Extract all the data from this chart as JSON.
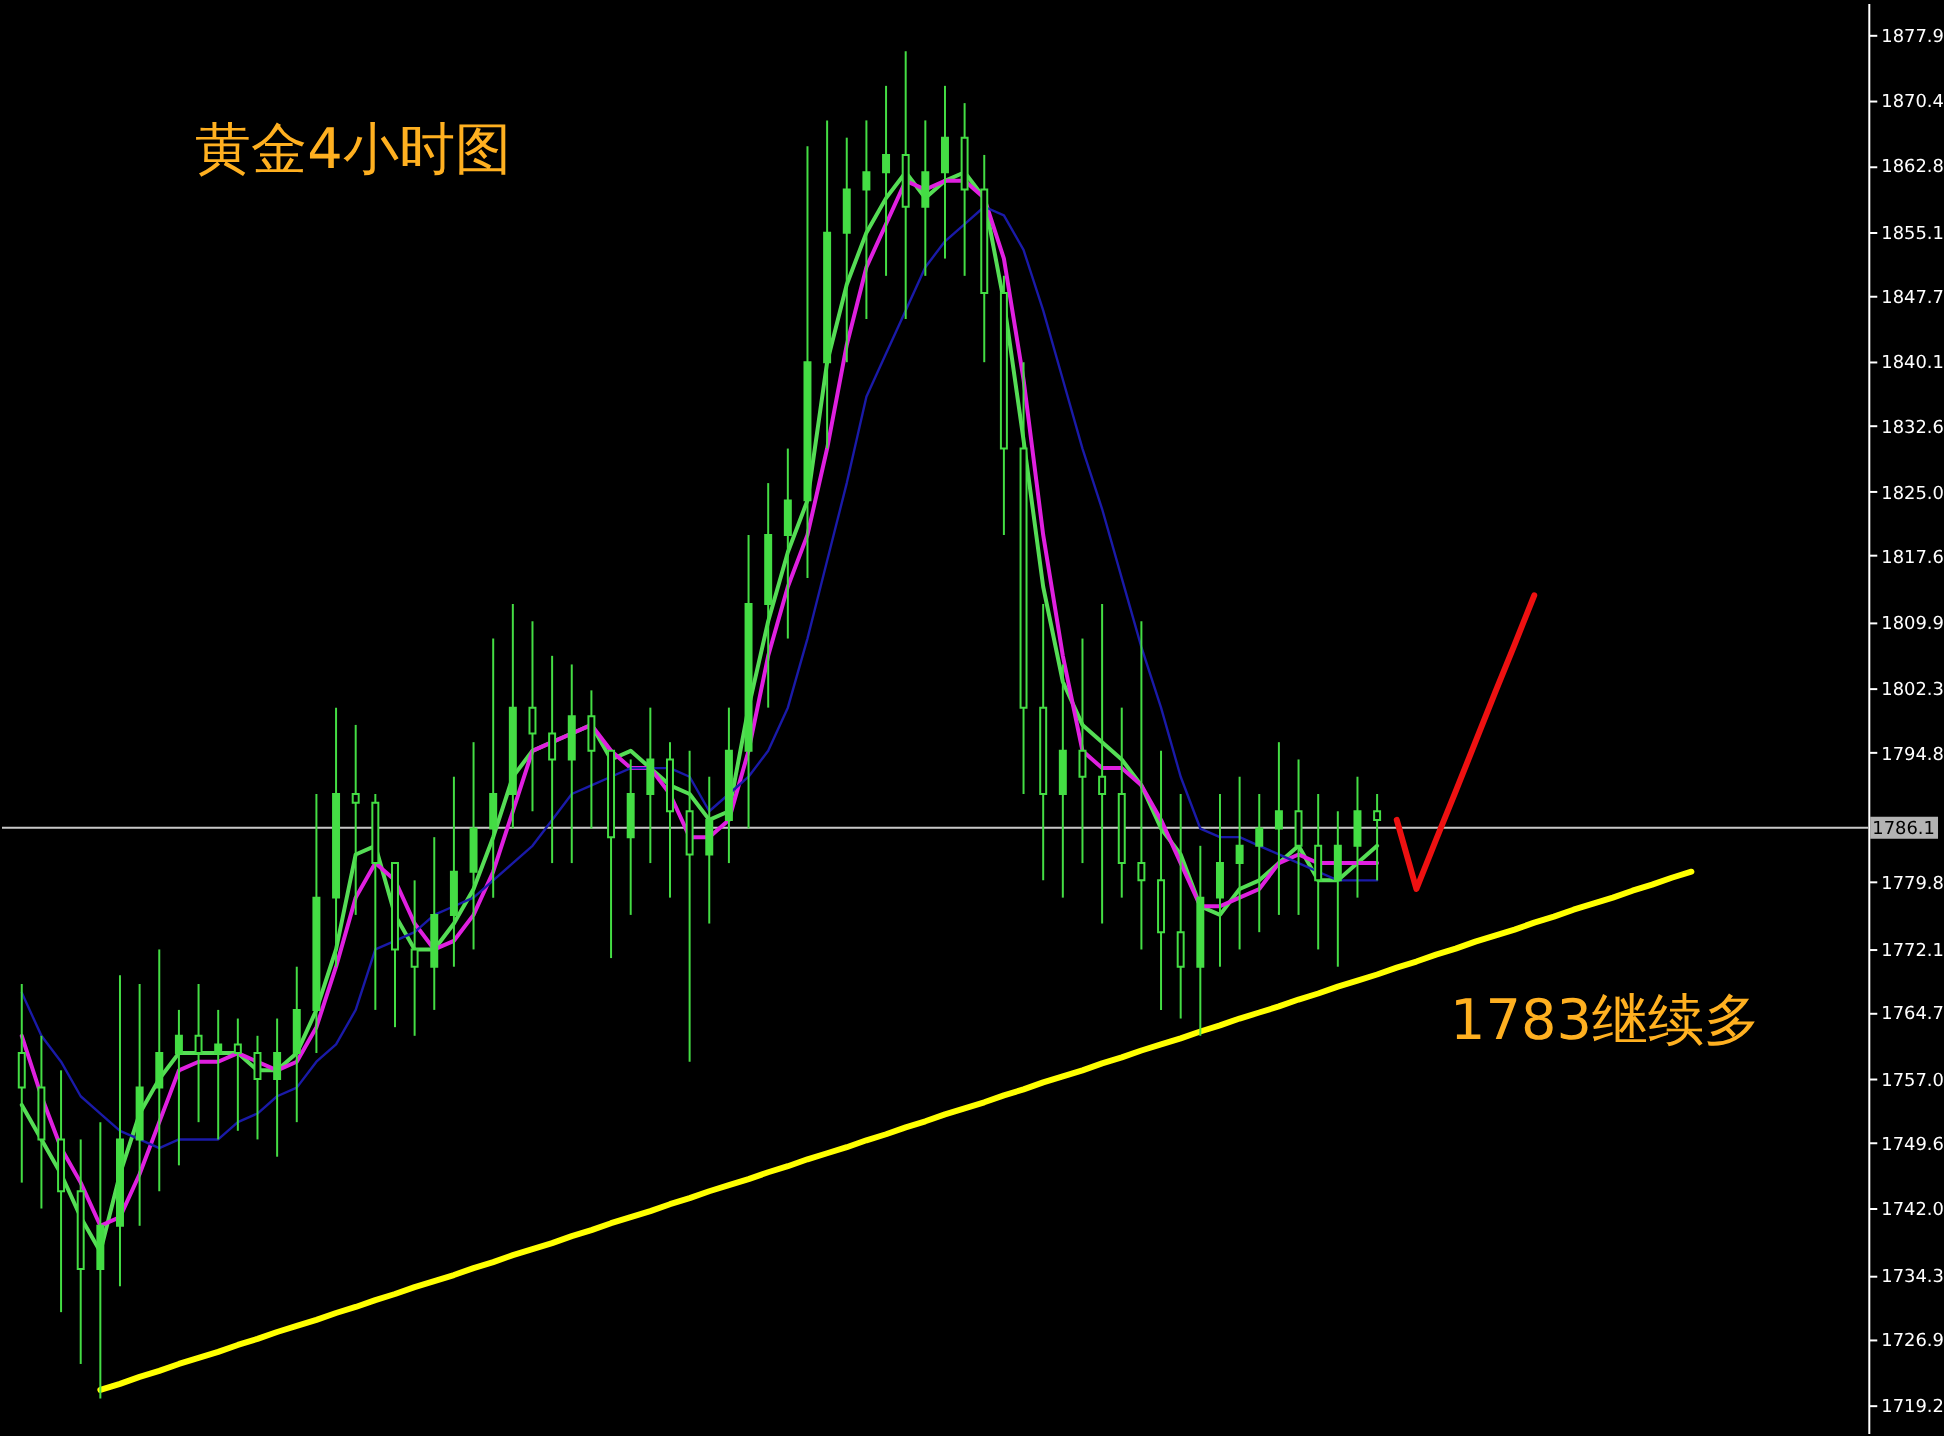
{
  "chart_data": {
    "type": "candlestick",
    "title": "黄金4小时图",
    "color": "#44dd44",
    "categories": [
      null,
      null,
      null,
      null,
      null,
      null,
      null,
      null,
      null,
      null,
      null,
      null,
      null,
      null,
      null,
      null,
      null,
      null,
      null,
      null,
      null,
      null,
      null,
      null,
      null,
      null,
      null,
      null,
      null,
      null,
      null,
      null,
      null,
      null,
      null,
      null,
      null,
      null,
      null,
      null,
      null,
      null,
      null,
      null,
      null,
      null,
      null,
      null,
      null,
      null,
      null,
      null,
      null,
      null,
      null,
      null,
      null,
      null,
      null,
      null,
      null,
      null,
      null,
      null,
      null,
      null,
      null,
      null,
      null,
      null,
      null,
      null,
      null,
      null,
      null,
      null,
      null,
      null,
      null,
      null,
      null,
      null,
      null,
      null,
      null,
      null,
      null,
      null,
      null,
      null,
      null,
      null,
      null,
      null
    ],
    "ohlc": [
      [
        1760,
        1768,
        1745,
        1756
      ],
      [
        1756,
        1762,
        1742,
        1750
      ],
      [
        1750,
        1758,
        1730,
        1744
      ],
      [
        1744,
        1750,
        1724,
        1735
      ],
      [
        1735,
        1752,
        1720,
        1740
      ],
      [
        1740,
        1769,
        1733,
        1750
      ],
      [
        1750,
        1768,
        1740,
        1756
      ],
      [
        1756,
        1772,
        1744,
        1760
      ],
      [
        1760,
        1765,
        1747,
        1762
      ],
      [
        1762,
        1768,
        1752,
        1760
      ],
      [
        1760,
        1765,
        1750,
        1761
      ],
      [
        1761,
        1764,
        1751,
        1760
      ],
      [
        1760,
        1762,
        1750,
        1757
      ],
      [
        1757,
        1764,
        1748,
        1760
      ],
      [
        1760,
        1770,
        1752,
        1765
      ],
      [
        1765,
        1790,
        1760,
        1778
      ],
      [
        1778,
        1800,
        1770,
        1790
      ],
      [
        1790,
        1798,
        1776,
        1789
      ],
      [
        1789,
        1790,
        1765,
        1782
      ],
      [
        1782,
        1782,
        1763,
        1772
      ],
      [
        1772,
        1780,
        1762,
        1770
      ],
      [
        1770,
        1785,
        1765,
        1776
      ],
      [
        1776,
        1792,
        1770,
        1781
      ],
      [
        1781,
        1796,
        1772,
        1786
      ],
      [
        1786,
        1808,
        1778,
        1790
      ],
      [
        1790,
        1812,
        1786,
        1800
      ],
      [
        1800,
        1810,
        1788,
        1797
      ],
      [
        1797,
        1806,
        1782,
        1794
      ],
      [
        1794,
        1805,
        1782,
        1799
      ],
      [
        1799,
        1802,
        1786,
        1795
      ],
      [
        1795,
        1795,
        1771,
        1785
      ],
      [
        1785,
        1794,
        1776,
        1790
      ],
      [
        1790,
        1800,
        1782,
        1794
      ],
      [
        1794,
        1796,
        1778,
        1788
      ],
      [
        1788,
        1795,
        1759,
        1783
      ],
      [
        1783,
        1792,
        1775,
        1787
      ],
      [
        1787,
        1800,
        1782,
        1795
      ],
      [
        1795,
        1820,
        1786,
        1812
      ],
      [
        1812,
        1826,
        1800,
        1820
      ],
      [
        1820,
        1830,
        1808,
        1824
      ],
      [
        1824,
        1865,
        1815,
        1840
      ],
      [
        1840,
        1868,
        1830,
        1855
      ],
      [
        1855,
        1866,
        1840,
        1860
      ],
      [
        1860,
        1868,
        1845,
        1862
      ],
      [
        1862,
        1872,
        1850,
        1864
      ],
      [
        1864,
        1876,
        1845,
        1858
      ],
      [
        1858,
        1868,
        1850,
        1862
      ],
      [
        1862,
        1872,
        1852,
        1866
      ],
      [
        1866,
        1870,
        1850,
        1860
      ],
      [
        1860,
        1864,
        1840,
        1848
      ],
      [
        1848,
        1850,
        1820,
        1830
      ],
      [
        1830,
        1840,
        1790,
        1800
      ],
      [
        1800,
        1812,
        1780,
        1790
      ],
      [
        1790,
        1805,
        1778,
        1795
      ],
      [
        1795,
        1808,
        1782,
        1792
      ],
      [
        1792,
        1812,
        1775,
        1790
      ],
      [
        1790,
        1800,
        1778,
        1782
      ],
      [
        1782,
        1810,
        1772,
        1780
      ],
      [
        1780,
        1795,
        1765,
        1774
      ],
      [
        1774,
        1790,
        1764,
        1770
      ],
      [
        1770,
        1784,
        1762,
        1778
      ],
      [
        1778,
        1790,
        1770,
        1782
      ],
      [
        1782,
        1792,
        1772,
        1784
      ],
      [
        1784,
        1790,
        1774,
        1786
      ],
      [
        1786,
        1796,
        1776,
        1788
      ],
      [
        1788,
        1794,
        1776,
        1784
      ],
      [
        1784,
        1790,
        1772,
        1780
      ],
      [
        1780,
        1788,
        1770,
        1784
      ],
      [
        1784,
        1792,
        1778,
        1788
      ],
      [
        1788,
        1790,
        1780,
        1787
      ],
      null,
      null,
      null,
      null,
      null,
      null,
      null,
      null,
      null,
      null,
      null,
      null,
      null,
      null,
      null,
      null,
      null,
      null,
      null,
      null,
      null,
      null,
      null,
      null
    ],
    "series": [
      {
        "type": "line",
        "color": "#55dd55",
        "values": [
          1754,
          1750,
          1746,
          1741,
          1737,
          1746,
          1753,
          1757,
          1760,
          1760,
          1760,
          1760,
          1758,
          1758,
          1760,
          1765,
          1772,
          1783,
          1784,
          1776,
          1772,
          1772,
          1775,
          1779,
          1785,
          1792,
          1795,
          1796,
          1797,
          1798,
          1794,
          1795,
          1793,
          1791,
          1790,
          1787,
          1788,
          1800,
          1810,
          1818,
          1824,
          1840,
          1849,
          1855,
          1859,
          1862,
          1859,
          1861,
          1862,
          1859,
          1847,
          1831,
          1814,
          1803,
          1798,
          1796,
          1794,
          1791,
          1786,
          1783,
          1777,
          1776,
          1779,
          1780,
          1782,
          1784,
          1780,
          1780,
          1782,
          1784,
          null,
          null,
          null,
          null,
          null,
          null,
          null,
          null,
          null,
          null,
          null,
          null,
          null,
          null,
          null,
          null,
          null,
          null,
          null,
          null,
          null,
          null,
          null,
          null
        ]
      },
      {
        "type": "line",
        "color": "#e020e0",
        "values": [
          1762,
          1755,
          1749,
          1745,
          1740,
          1741,
          1746,
          1752,
          1758,
          1759,
          1759,
          1760,
          1759,
          1758,
          1759,
          1763,
          1770,
          1778,
          1782,
          1780,
          1775,
          1772,
          1773,
          1776,
          1781,
          1788,
          1795,
          1796,
          1797,
          1798,
          1795,
          1793,
          1793,
          1790,
          1785,
          1785,
          1787,
          1795,
          1806,
          1814,
          1820,
          1830,
          1842,
          1851,
          1856,
          1861,
          1860,
          1861,
          1861,
          1859,
          1852,
          1838,
          1820,
          1806,
          1795,
          1793,
          1793,
          1791,
          1787,
          1782,
          1777,
          1777,
          1778,
          1779,
          1782,
          1783,
          1782,
          1782,
          1782,
          1782,
          null,
          null,
          null,
          null,
          null,
          null,
          null,
          null,
          null,
          null,
          null,
          null,
          null,
          null,
          null,
          null,
          null,
          null,
          null,
          null,
          null,
          null,
          null,
          null
        ]
      },
      {
        "type": "line",
        "color": "#1a1aa8",
        "values": [
          1767,
          1762,
          1759,
          1755,
          1753,
          1751,
          1750,
          1749,
          1750,
          1750,
          1750,
          1752,
          1753,
          1755,
          1756,
          1759,
          1761,
          1765,
          1772,
          1773,
          1774,
          1776,
          1777,
          1778,
          1780,
          1782,
          1784,
          1787,
          1790,
          1791,
          1792,
          1793,
          1793,
          1793,
          1792,
          1788,
          1790,
          1792,
          1795,
          1800,
          1808,
          1817,
          1826,
          1836,
          1841,
          1846,
          1851,
          1854,
          1856,
          1858,
          1857,
          1853,
          1846,
          1838,
          1830,
          1823,
          1815,
          1807,
          1800,
          1792,
          1786,
          1785,
          1785,
          1784,
          1783,
          1782,
          1781,
          1780,
          1780,
          1780,
          null,
          null,
          null,
          null,
          null,
          null,
          null,
          null,
          null,
          null,
          null,
          null,
          null,
          null,
          null,
          null,
          null,
          null,
          null,
          null,
          null,
          null,
          null,
          null
        ]
      },
      {
        "type": "line",
        "color": "#ffff00",
        "values": [
          null,
          null,
          null,
          null,
          1721.0,
          1721.7,
          1722.5,
          1723.2,
          1724.0,
          1724.7,
          1725.4,
          1726.2,
          1726.9,
          1727.7,
          1728.4,
          1729.1,
          1729.9,
          1730.6,
          1731.4,
          1732.1,
          1732.9,
          1733.6,
          1734.3,
          1735.1,
          1735.8,
          1736.6,
          1737.3,
          1738.0,
          1738.8,
          1739.5,
          1740.3,
          1741.0,
          1741.7,
          1742.5,
          1743.2,
          1744.0,
          1744.7,
          1745.4,
          1746.2,
          1746.9,
          1747.7,
          1748.4,
          1749.1,
          1749.9,
          1750.6,
          1751.4,
          1752.1,
          1752.9,
          1753.6,
          1754.3,
          1755.1,
          1755.8,
          1756.6,
          1757.3,
          1758.0,
          1758.8,
          1759.5,
          1760.3,
          1761.0,
          1761.7,
          1762.5,
          1763.2,
          1764.0,
          1764.7,
          1765.4,
          1766.2,
          1766.9,
          1767.7,
          1768.4,
          1769.1,
          1769.9,
          1770.6,
          1771.4,
          1772.1,
          1772.9,
          1773.6,
          1774.3,
          1775.1,
          1775.8,
          1776.6,
          1777.3,
          1778.0,
          1778.8,
          1779.5,
          1780.3,
          1781.0,
          null,
          null,
          null,
          null,
          null,
          null,
          null,
          null
        ]
      },
      {
        "type": "line",
        "color": "#ee1111",
        "values": [
          null,
          null,
          null,
          null,
          null,
          null,
          null,
          null,
          null,
          null,
          null,
          null,
          null,
          null,
          null,
          null,
          null,
          null,
          null,
          null,
          null,
          null,
          null,
          null,
          null,
          null,
          null,
          null,
          null,
          null,
          null,
          null,
          null,
          null,
          null,
          null,
          null,
          null,
          null,
          null,
          null,
          null,
          null,
          null,
          null,
          null,
          null,
          null,
          null,
          null,
          null,
          null,
          null,
          null,
          null,
          null,
          null,
          null,
          null,
          null,
          null,
          null,
          null,
          null,
          null,
          null,
          null,
          null,
          null,
          null,
          1787,
          1779,
          1784.7,
          1790.3,
          1796.0,
          1801.7,
          1807.3,
          1813,
          null,
          null,
          null,
          null,
          null,
          null,
          null,
          null,
          null,
          null,
          null,
          null,
          null,
          null,
          null,
          null
        ]
      }
    ],
    "ylim": [
      1716,
      1881.6
    ],
    "yticks": [
      1877.9,
      1870.4,
      1862.8,
      1855.1,
      1847.7,
      1840.1,
      1832.6,
      {
        "value": 1825,
        "label": "1825.0"
      },
      1817.6,
      1809.9,
      1802.3,
      1794.8,
      1779.8,
      1772.1,
      1764.7,
      {
        "value": 1757,
        "label": "1757.0"
      },
      1749.6,
      {
        "value": 1742,
        "label": "1742.0"
      },
      1734.3,
      1726.9,
      1719.2
    ],
    "ref_lines": [
      {
        "axis": "y",
        "value": 1786.1,
        "label": "1786.1",
        "color": "#c8c8c8"
      }
    ],
    "annotations": [
      "1783继续多"
    ]
  }
}
